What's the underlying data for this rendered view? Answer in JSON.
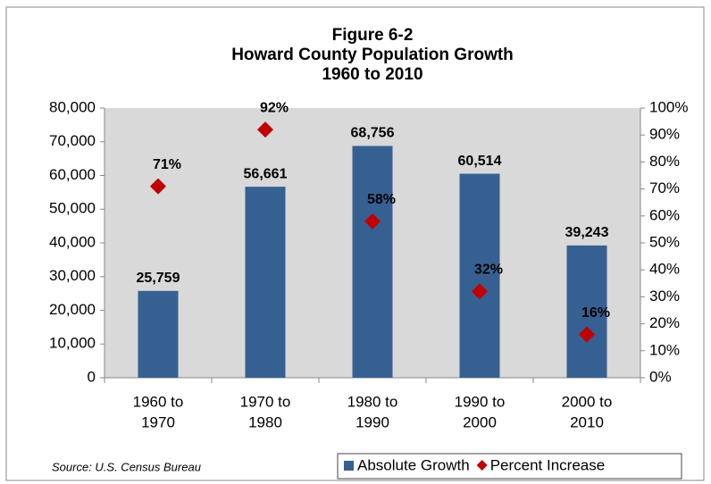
{
  "chart_data": {
    "type": "bar",
    "title": [
      "Figure 6-2",
      "Howard County Population Growth",
      "1960 to 2010"
    ],
    "source": "Source:  U.S. Census Bureau",
    "categories": [
      [
        "1960 to",
        "1970"
      ],
      [
        "1970 to",
        "1980"
      ],
      [
        "1980 to",
        "1990"
      ],
      [
        "1990 to",
        "2000"
      ],
      [
        "2000 to",
        "2010"
      ]
    ],
    "series": [
      {
        "name": "Absolute Growth",
        "type": "bar",
        "color": "#376092",
        "values": [
          25759,
          56661,
          68756,
          60514,
          39243
        ],
        "value_labels": [
          "25,759",
          "56,661",
          "68,756",
          "60,514",
          "39,243"
        ]
      },
      {
        "name": "Percent Increase",
        "type": "scatter",
        "axis": "y2",
        "color": "#c00000",
        "values": [
          71,
          92,
          58,
          32,
          16
        ],
        "value_labels": [
          "71%",
          "92%",
          "58%",
          "32%",
          "16%"
        ]
      }
    ],
    "ylim": [
      0,
      80000
    ],
    "yticks": [
      0,
      {
        "value": 10000,
        "label": "10,000"
      },
      {
        "value": 20000,
        "label": "20,000"
      },
      {
        "value": 30000,
        "label": "30,000"
      },
      {
        "value": 40000,
        "label": "40,000"
      },
      {
        "value": 50000,
        "label": "50,000"
      },
      {
        "value": 60000,
        "label": "60,000"
      },
      {
        "value": 70000,
        "label": "70,000"
      },
      {
        "value": 80000,
        "label": "80,000"
      }
    ],
    "y2lim": [
      0,
      100
    ],
    "y2ticks": [
      {
        "value": 0,
        "label": "0%"
      },
      {
        "value": 10,
        "label": "10%"
      },
      {
        "value": 20,
        "label": "20%"
      },
      {
        "value": 30,
        "label": "30%"
      },
      {
        "value": 40,
        "label": "40%"
      },
      {
        "value": 50,
        "label": "50%"
      },
      {
        "value": 60,
        "label": "60%"
      },
      {
        "value": 70,
        "label": "70%"
      },
      {
        "value": 80,
        "label": "80%"
      },
      {
        "value": 90,
        "label": "90%"
      },
      {
        "value": 100,
        "label": "100%"
      }
    ],
    "grid": false
  }
}
